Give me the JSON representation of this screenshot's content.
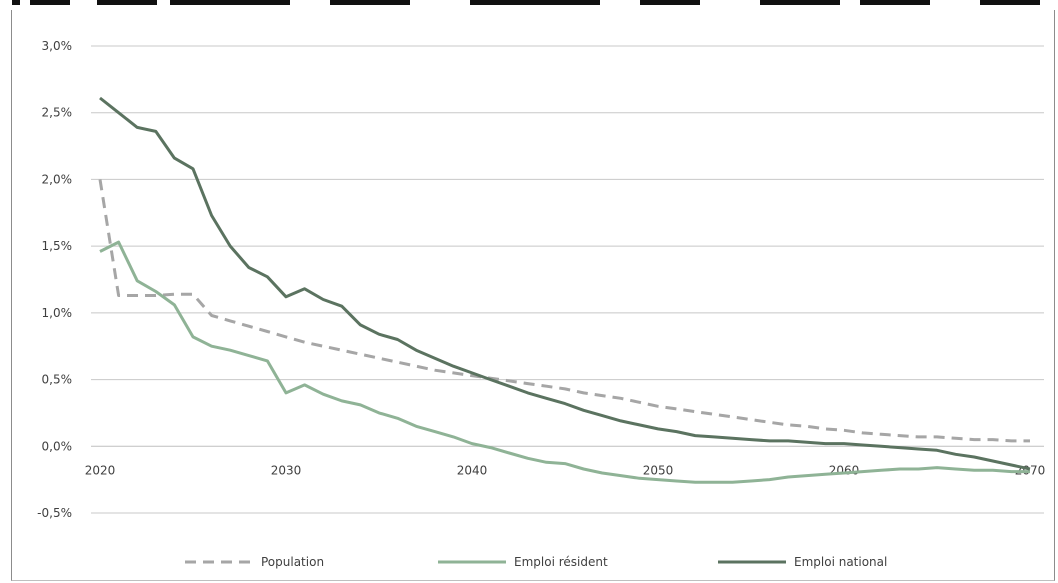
{
  "chart_data": {
    "type": "line",
    "title": "",
    "xlabel": "",
    "ylabel": "",
    "xlim": [
      2020,
      2070
    ],
    "ylim": [
      -0.5,
      3.0
    ],
    "ytick_values": [
      -0.5,
      0.0,
      0.5,
      1.0,
      1.5,
      2.0,
      2.5,
      3.0
    ],
    "ytick_labels": [
      "-0,5%",
      "0,0%",
      "0,5%",
      "1,0%",
      "1,5%",
      "2,0%",
      "2,5%",
      "3,0%"
    ],
    "xtick_values": [
      2020,
      2030,
      2040,
      2050,
      2060,
      2070
    ],
    "xtick_labels": [
      "2020",
      "2030",
      "2040",
      "2050",
      "2060",
      "2070"
    ],
    "grid": "horizontal",
    "legend_position": "bottom",
    "x": [
      2020,
      2021,
      2022,
      2023,
      2024,
      2025,
      2026,
      2027,
      2028,
      2029,
      2030,
      2031,
      2032,
      2033,
      2034,
      2035,
      2036,
      2037,
      2038,
      2039,
      2040,
      2041,
      2042,
      2043,
      2044,
      2045,
      2046,
      2047,
      2048,
      2049,
      2050,
      2051,
      2052,
      2053,
      2054,
      2055,
      2056,
      2057,
      2058,
      2059,
      2060,
      2061,
      2062,
      2063,
      2064,
      2065,
      2066,
      2067,
      2068,
      2069,
      2070
    ],
    "series": [
      {
        "name": "Population",
        "color": "#a6a6a6",
        "dash": "dashed",
        "values": [
          2.0,
          1.13,
          1.13,
          1.13,
          1.14,
          1.14,
          0.98,
          0.94,
          0.9,
          0.86,
          0.82,
          0.78,
          0.75,
          0.72,
          0.69,
          0.66,
          0.63,
          0.6,
          0.57,
          0.55,
          0.53,
          0.51,
          0.49,
          0.47,
          0.45,
          0.43,
          0.4,
          0.38,
          0.36,
          0.33,
          0.3,
          0.28,
          0.26,
          0.24,
          0.22,
          0.2,
          0.18,
          0.16,
          0.15,
          0.13,
          0.12,
          0.1,
          0.09,
          0.08,
          0.07,
          0.07,
          0.06,
          0.05,
          0.05,
          0.04,
          0.04
        ]
      },
      {
        "name": "Emploi résident",
        "color": "#8fb396",
        "dash": "solid",
        "values": [
          1.46,
          1.53,
          1.24,
          1.16,
          1.06,
          0.82,
          0.75,
          0.72,
          0.68,
          0.64,
          0.4,
          0.46,
          0.39,
          0.34,
          0.31,
          0.25,
          0.21,
          0.15,
          0.11,
          0.07,
          0.02,
          -0.01,
          -0.05,
          -0.09,
          -0.12,
          -0.13,
          -0.17,
          -0.2,
          -0.22,
          -0.24,
          -0.25,
          -0.26,
          -0.27,
          -0.27,
          -0.27,
          -0.26,
          -0.25,
          -0.23,
          -0.22,
          -0.21,
          -0.2,
          -0.19,
          -0.18,
          -0.17,
          -0.17,
          -0.16,
          -0.17,
          -0.18,
          -0.18,
          -0.19,
          -0.19
        ]
      },
      {
        "name": "Emploi national",
        "color": "#5b7360",
        "dash": "solid",
        "values": [
          2.61,
          2.5,
          2.39,
          2.36,
          2.16,
          2.08,
          1.73,
          1.5,
          1.34,
          1.27,
          1.12,
          1.18,
          1.1,
          1.05,
          0.91,
          0.84,
          0.8,
          0.72,
          0.66,
          0.6,
          0.55,
          0.5,
          0.45,
          0.4,
          0.36,
          0.32,
          0.27,
          0.23,
          0.19,
          0.16,
          0.13,
          0.11,
          0.08,
          0.07,
          0.06,
          0.05,
          0.04,
          0.04,
          0.03,
          0.02,
          0.02,
          0.01,
          0.0,
          -0.01,
          -0.02,
          -0.03,
          -0.06,
          -0.08,
          -0.11,
          -0.14,
          -0.17
        ]
      }
    ]
  }
}
